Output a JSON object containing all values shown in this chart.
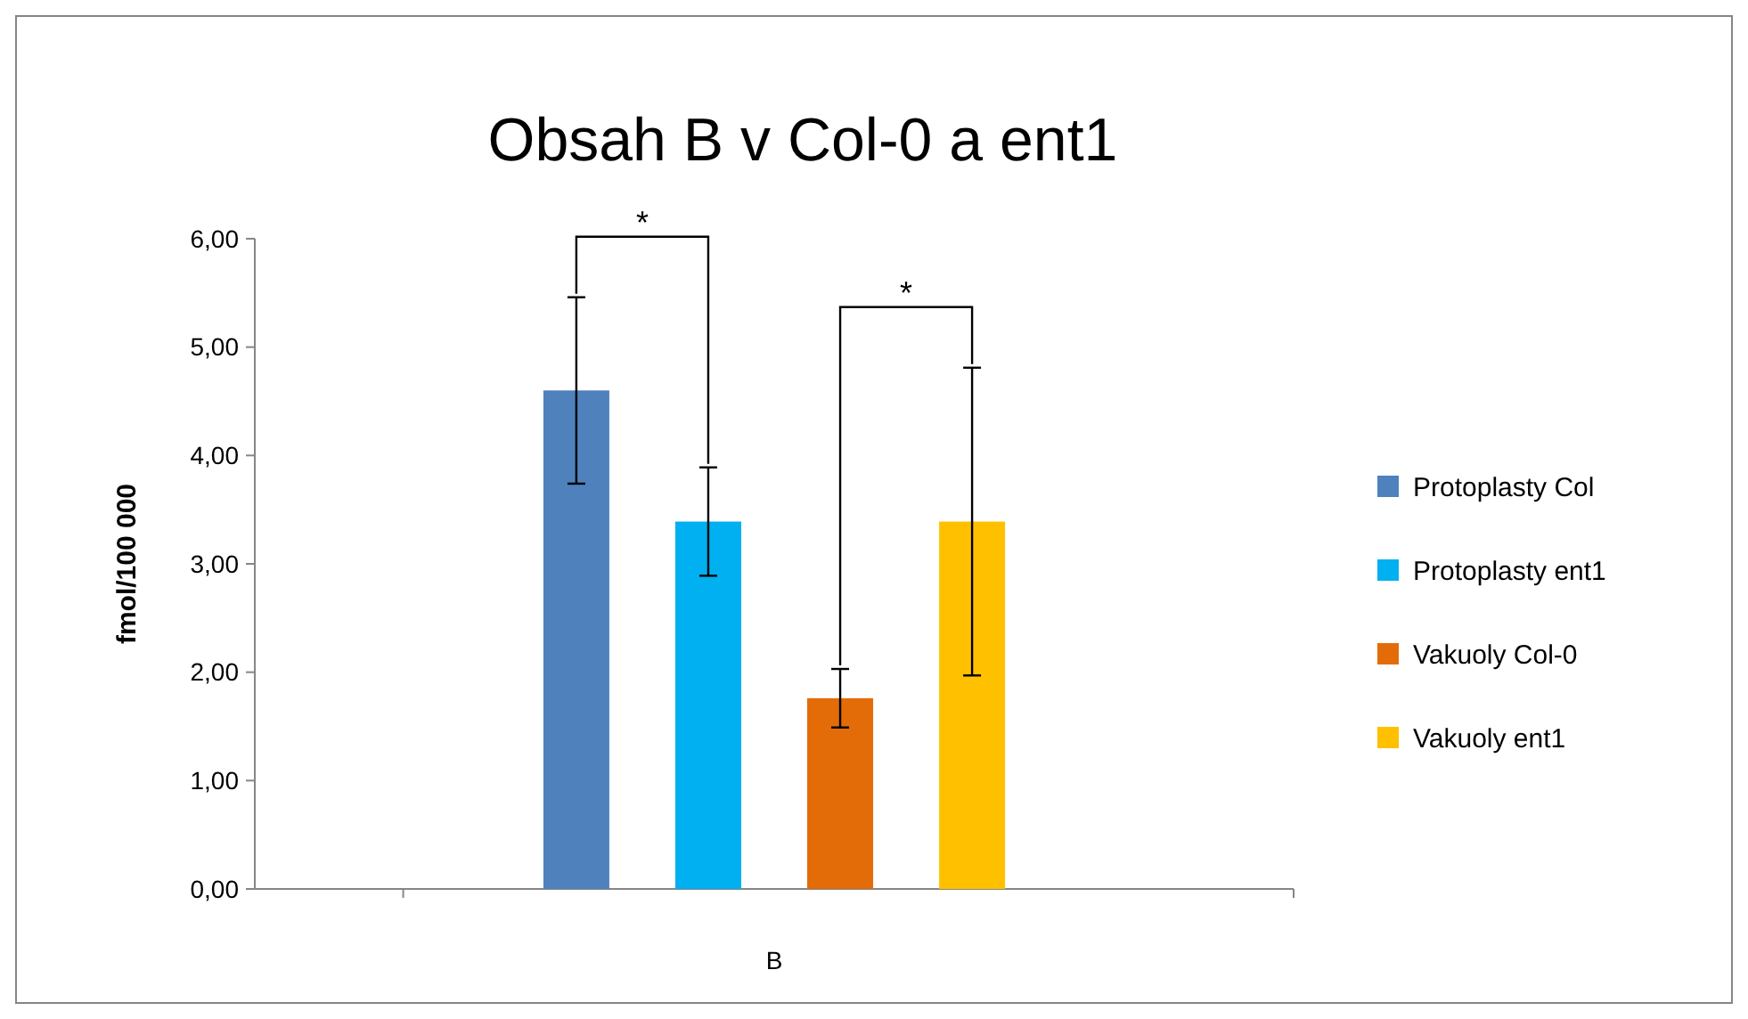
{
  "chart_data": {
    "type": "bar",
    "title": "Obsah B v Col-0 a ent1",
    "ylabel": "fmol/100 000",
    "categories": [
      "B"
    ],
    "series": [
      {
        "name": "Protoplasty Col",
        "color": "#4f81bd",
        "values": [
          4.6
        ],
        "errors": [
          0.86
        ]
      },
      {
        "name": "Protoplasty ent1",
        "color": "#00b0f0",
        "values": [
          3.39
        ],
        "errors": [
          0.5
        ]
      },
      {
        "name": "Vakuoly Col-0",
        "color": "#e36c09",
        "values": [
          1.76
        ],
        "errors": [
          0.27
        ]
      },
      {
        "name": "Vakuoly ent1",
        "color": "#ffc000",
        "values": [
          3.39
        ],
        "errors": [
          1.42
        ]
      }
    ],
    "ylim": [
      0,
      6
    ],
    "yticks": [
      {
        "value": 0,
        "label": "0,00"
      },
      {
        "value": 1,
        "label": "1,00"
      },
      {
        "value": 2,
        "label": "2,00"
      },
      {
        "value": 3,
        "label": "3,00"
      },
      {
        "value": 4,
        "label": "4,00"
      },
      {
        "value": 5,
        "label": "5,00"
      },
      {
        "value": 6,
        "label": "6,00"
      }
    ],
    "annotations": [
      "*",
      "*"
    ],
    "grid": false,
    "legend": "right"
  }
}
